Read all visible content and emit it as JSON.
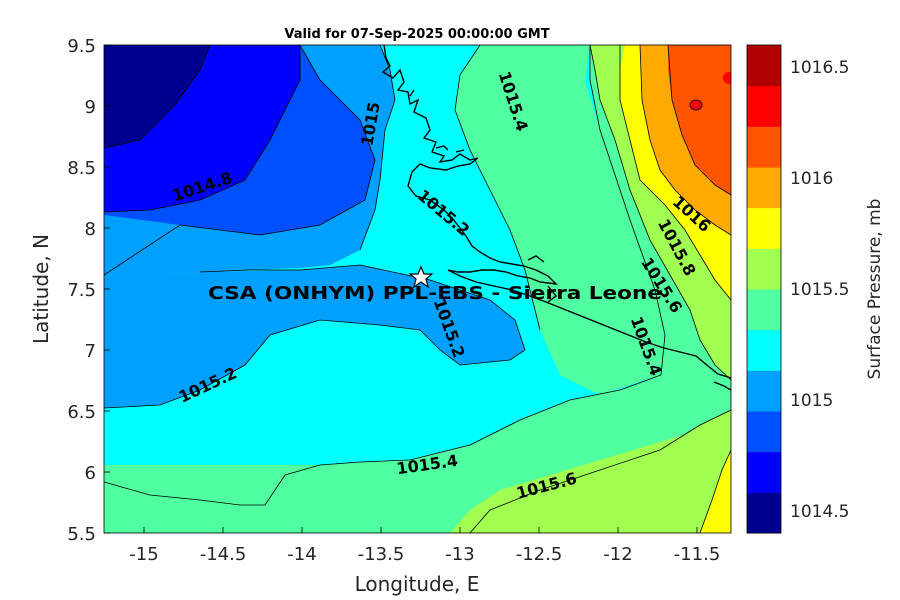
{
  "title": "Valid for 07-Sep-2025 00:00:00 GMT",
  "xlabel": "Longitude, E",
  "ylabel": "Latitude, N",
  "colorbar_label": "Surface Pressure, mb",
  "x_ticks": [
    "-15",
    "-14.5",
    "-14",
    "-13.5",
    "-13",
    "-12.5",
    "-12",
    "-11.5"
  ],
  "y_ticks": [
    "9.5",
    "9",
    "8.5",
    "8",
    "7.5",
    "7",
    "6.5",
    "6",
    "5.5"
  ],
  "colorbar_ticks": [
    "1016.5",
    "1016",
    "1015.5",
    "1015",
    "1014.5"
  ],
  "colorbar_colors": [
    "#00008F",
    "#0000FF",
    "#0050FF",
    "#00A0FF",
    "#00FFFF",
    "#50FFA0",
    "#A0FF50",
    "#FFFF00",
    "#FFAA00",
    "#FF5500",
    "#FF0000",
    "#B00000"
  ],
  "station_label": "CSA (ONHYM) PPL-EBS  - Sierra Leone",
  "contour_labels": [
    "1014.8",
    "1015",
    "1015.4",
    "1015.2",
    "1015.2",
    "1015.2",
    "1015.4",
    "1015.6",
    "1016",
    "1015.8",
    "1015.6",
    "1015.4"
  ],
  "x_range": [
    -15.25,
    -11.25
  ],
  "y_range": [
    5.5,
    9.5
  ],
  "colorbar_range": [
    1014.4,
    1016.6
  ],
  "contour_interval": 0.2,
  "station": {
    "lon": -13.2,
    "lat": 7.6
  }
}
